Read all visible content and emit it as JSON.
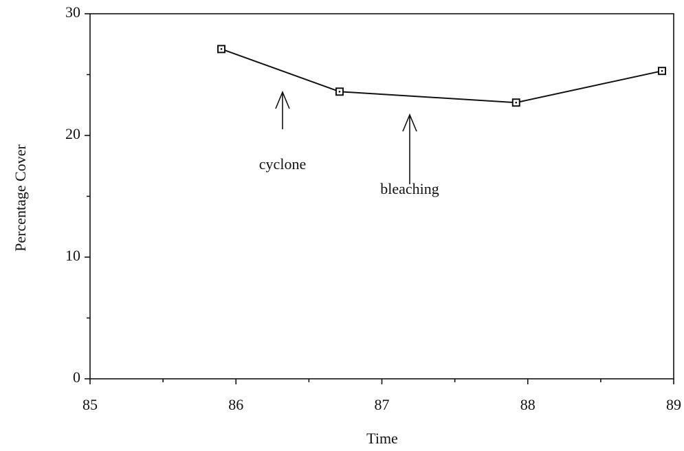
{
  "chart_data": {
    "type": "line",
    "x_label": "Time",
    "y_label": "Percentage Cover",
    "x": [
      85.9,
      86.71,
      87.92,
      88.92
    ],
    "series": [
      {
        "color": "#111111",
        "values": [
          27.1,
          23.6,
          22.7,
          25.3
        ]
      }
    ],
    "xlim": [
      85,
      89
    ],
    "xticks": [
      85,
      86,
      87,
      88,
      89
    ],
    "ylim": [
      0,
      30
    ],
    "yticks": [
      0,
      10,
      20,
      30
    ],
    "grid": false,
    "annotations": [
      "cyclone",
      "bleaching"
    ]
  }
}
